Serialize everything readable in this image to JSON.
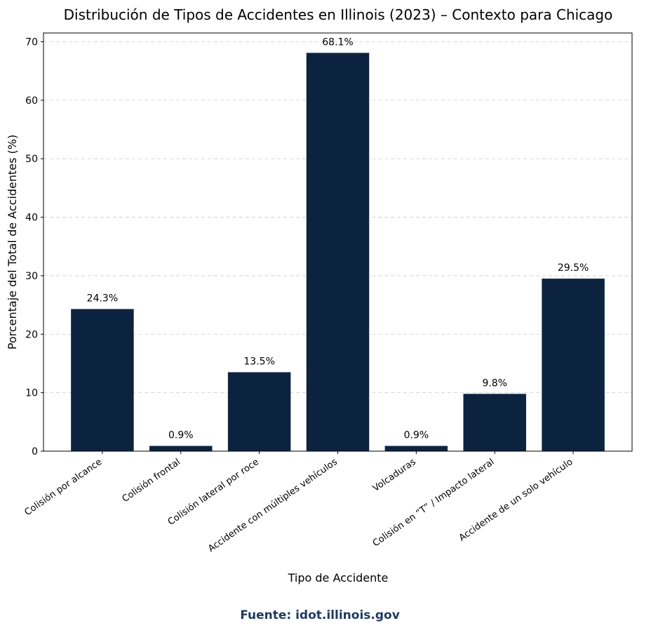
{
  "chart_data": {
    "type": "bar",
    "title": "Distribución de Tipos de Accidentes en Illinois (2023) – Contexto para Chicago",
    "xlabel": "Tipo de Accidente",
    "ylabel": "Porcentaje del Total de Accidentes (%)",
    "categories": [
      "Colisión por alcance",
      "Colisión frontal",
      "Colisión lateral por roce",
      "Accidente con múltiples vehículos",
      "Volcaduras",
      "Colisión en “T” / Impacto lateral",
      "Accidente de un solo vehículo"
    ],
    "values": [
      24.3,
      0.9,
      13.5,
      68.1,
      0.9,
      9.8,
      29.5
    ],
    "data_labels": [
      "24.3%",
      "0.9%",
      "13.5%",
      "68.1%",
      "0.9%",
      "9.8%",
      "29.5%"
    ],
    "ylim": [
      0,
      71.5
    ],
    "yticks": [
      0,
      10,
      20,
      30,
      40,
      50,
      60,
      70
    ],
    "grid": "y dashed",
    "bar_color": "#0c2340"
  },
  "footer": {
    "source": "Fuente: idot.illinois.gov",
    "color": "#1f3a5f"
  }
}
